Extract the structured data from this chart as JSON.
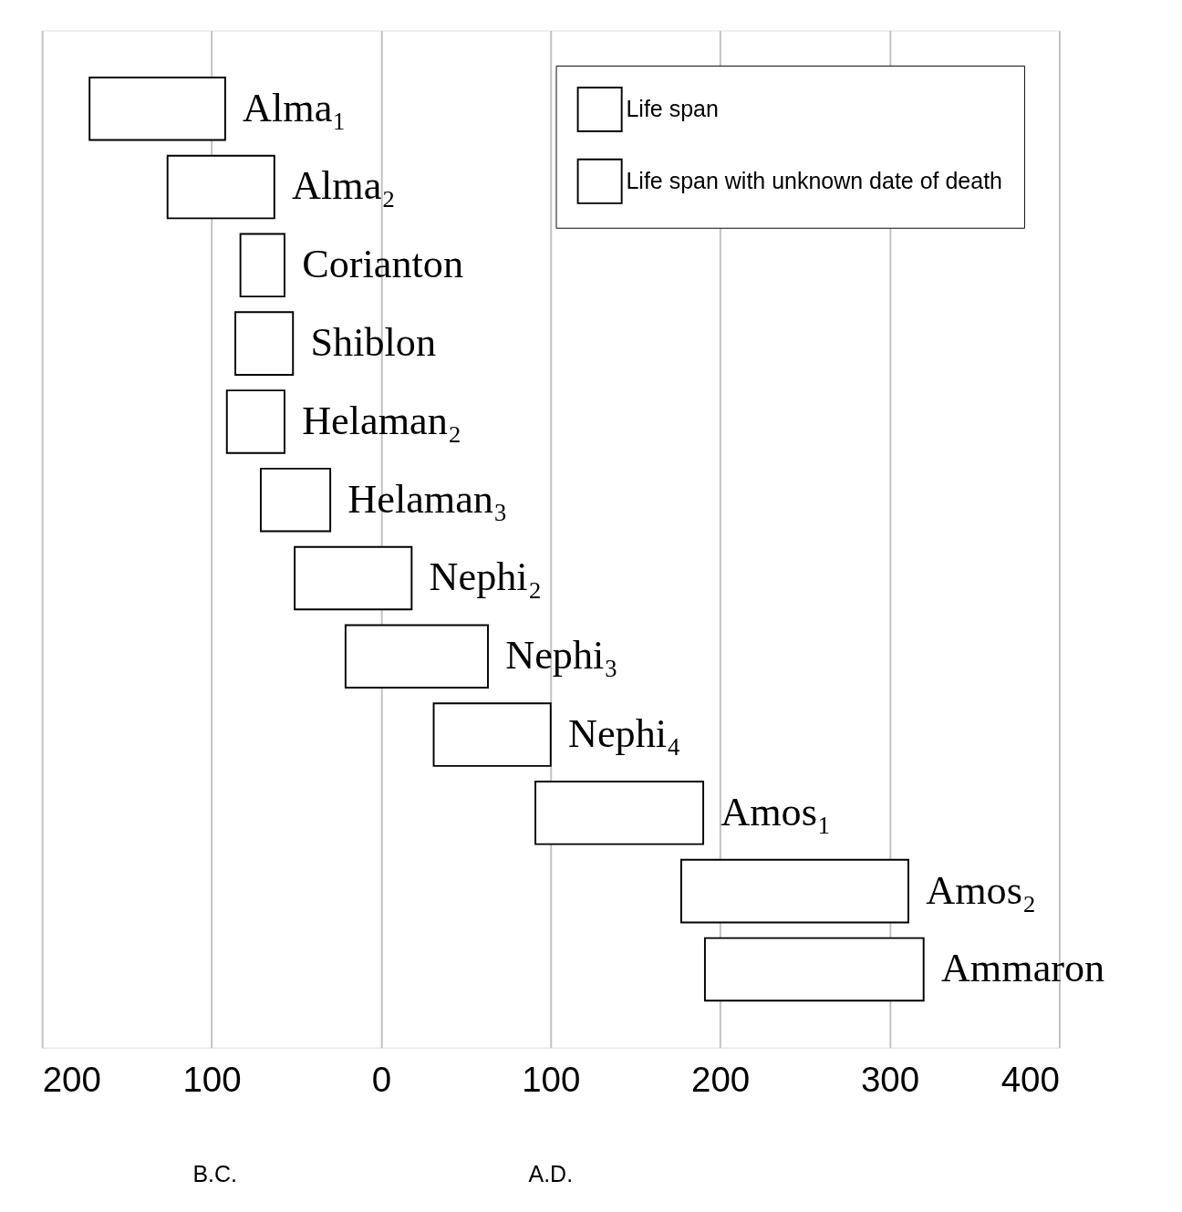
{
  "chart_data": {
    "type": "bar",
    "orientation": "horizontal",
    "categories": [
      "Alma₁",
      "Alma₂",
      "Corianton",
      "Shiblon",
      "Helaman₂",
      "Helaman₃",
      "Nephi₂",
      "Nephi₃",
      "Nephi₄",
      "Amos₁",
      "Amos₂",
      "Ammaron"
    ],
    "series": [
      {
        "name": "Life span",
        "color": "#ffffff",
        "values": [
          80,
          null,
          null,
          34,
          34,
          41,
          null,
          84,
          69,
          99,
          134,
          129
        ],
        "base": [
          -172,
          null,
          null,
          -86,
          -91,
          -71,
          null,
          -21,
          31,
          91,
          177,
          191
        ]
      },
      {
        "name": "Life span with unknown date of death",
        "color": "#ffffff",
        "values": [
          null,
          63,
          26,
          null,
          null,
          null,
          69,
          null,
          null,
          null,
          null,
          null
        ],
        "base": [
          null,
          -126,
          -83,
          null,
          null,
          null,
          -51,
          null,
          null,
          null,
          null,
          null
        ]
      }
    ],
    "xlim": [
      -200,
      400
    ],
    "xticks": [
      {
        "value": -200,
        "label": "200"
      },
      {
        "value": -100,
        "label": "100"
      },
      0,
      100,
      200,
      300,
      400
    ],
    "grid": "x",
    "legend": "top right",
    "tick_labels": "x",
    "annotations": [
      "B.C.",
      "A.D."
    ]
  }
}
